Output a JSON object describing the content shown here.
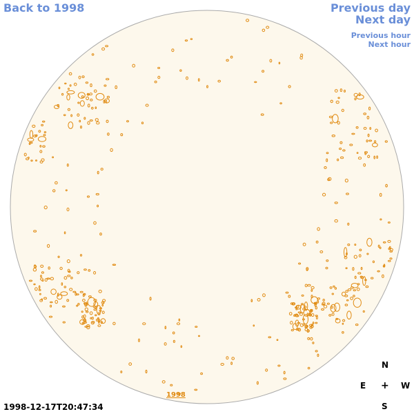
{
  "nav": {
    "back_label": "Back to 1998",
    "prev_day_label": "Previous day",
    "next_day_label": "Next day",
    "prev_hour_label": "Previous hour",
    "next_hour_label": "Next hour"
  },
  "compass": {
    "north": "N",
    "east": "E",
    "center": "+",
    "west": "W",
    "south": "S"
  },
  "timestamp": "1998-12-17T20:47:34",
  "year_label": "1998",
  "colors": {
    "link": "#6a8fd8",
    "disk_fill": "#fdf8ec",
    "contour": "#e08a10",
    "limb": "#aaaaaa"
  }
}
